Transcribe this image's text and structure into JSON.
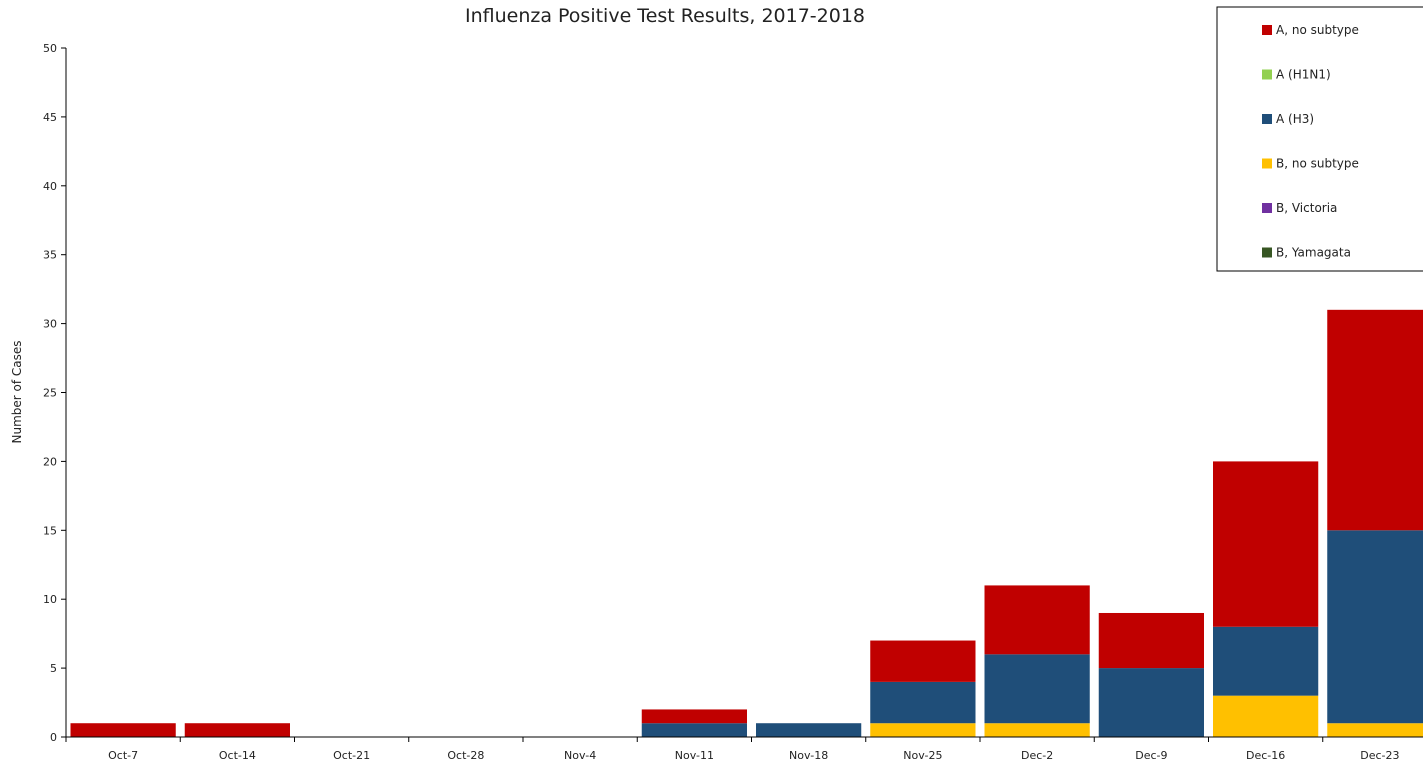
{
  "chart_data": {
    "type": "bar",
    "stacked": true,
    "title": "Influenza Positive Test Results, 2017-2018",
    "xlabel": "",
    "ylabel": "Number of Cases",
    "ylim": [
      0,
      50
    ],
    "yticks": [
      0,
      5,
      10,
      15,
      20,
      25,
      30,
      35,
      40,
      45,
      50
    ],
    "grid": false,
    "legend_position": "top-right",
    "categories": [
      "Oct-7",
      "Oct-14",
      "Oct-21",
      "Oct-28",
      "Nov-4",
      "Nov-11",
      "Nov-18",
      "Nov-25",
      "Dec-2",
      "Dec-9",
      "Dec-16",
      "Dec-23"
    ],
    "series": [
      {
        "name": "B, Yamagata",
        "color": "#375623",
        "values": [
          0,
          0,
          0,
          0,
          0,
          0,
          0,
          0,
          0,
          0,
          0,
          0
        ]
      },
      {
        "name": "B, Victoria",
        "color": "#7030A0",
        "values": [
          0,
          0,
          0,
          0,
          0,
          0,
          0,
          0,
          0,
          0,
          0,
          0
        ]
      },
      {
        "name": "B, no subtype",
        "color": "#FFC000",
        "values": [
          0,
          0,
          0,
          0,
          0,
          0,
          0,
          1,
          1,
          0,
          3,
          1
        ]
      },
      {
        "name": "A (H3)",
        "color": "#1F4E79",
        "values": [
          0,
          0,
          0,
          0,
          0,
          1,
          1,
          3,
          5,
          5,
          5,
          14
        ]
      },
      {
        "name": "A (H1N1)",
        "color": "#92D050",
        "values": [
          0,
          0,
          0,
          0,
          0,
          0,
          0,
          0,
          0,
          0,
          0,
          0
        ]
      },
      {
        "name": "A, no subtype",
        "color": "#C00000",
        "values": [
          1,
          1,
          0,
          0,
          0,
          1,
          0,
          3,
          5,
          4,
          12,
          16
        ]
      }
    ],
    "legend_order": [
      "A, no subtype",
      "A (H1N1)",
      "A (H3)",
      "B, no subtype",
      "B, Victoria",
      "B, Yamagata"
    ]
  }
}
